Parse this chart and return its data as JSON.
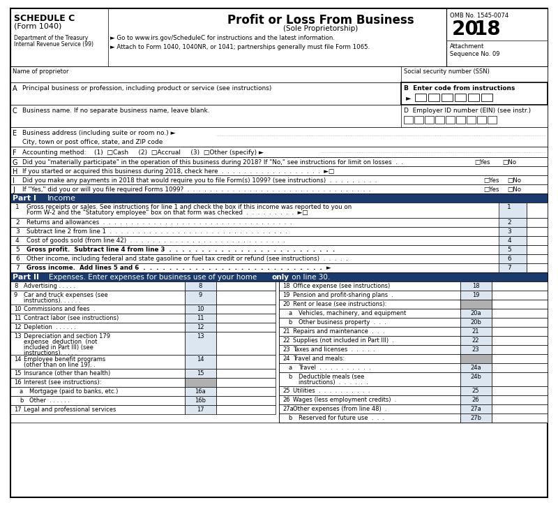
{
  "title": "Profit or Loss From Business",
  "subtitle": "(Sole Proprietorship)",
  "schedule": "SCHEDULE C",
  "form": "(Form 1040)",
  "omb": "OMB No. 1545-0074",
  "year": "2018",
  "attachment": "Attachment",
  "sequence": "Sequence No. 09",
  "dept1": "Department of the Treasury",
  "dept2": "Internal Revenue Service (99)",
  "arrow1": "► Go to www.irs.gov/ScheduleC for instructions and the latest information.",
  "arrow2": "► Attach to Form 1040, 1040NR, or 1041; partnerships generally must file Form 1065.",
  "bg_color": "#ffffff",
  "part_bg": "#1a3a6e",
  "light_blue": "#dce6f1",
  "gray_box": "#b0b0b0",
  "line_color": "#000000"
}
